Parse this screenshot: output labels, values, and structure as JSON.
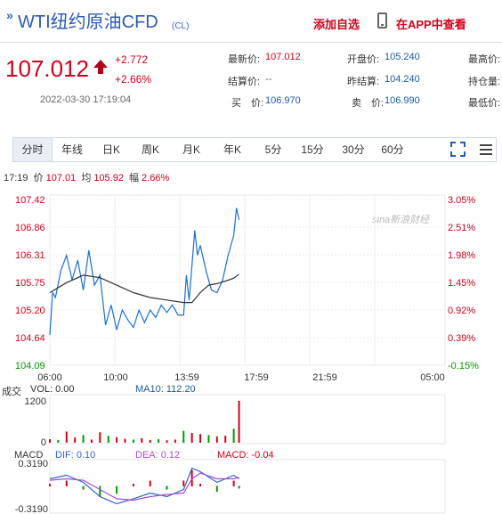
{
  "header": {
    "title": "WTI纽约原油CFD",
    "code": "(CL)",
    "add_fav": "添加自选",
    "app_link": "在APP中查看"
  },
  "price": {
    "last": "107.012",
    "change": "+2.772",
    "change_pct": "+2.66%",
    "timestamp": "2022-03-30 17:19:04"
  },
  "quote": {
    "latest_label": "最新价:",
    "latest": "107.012",
    "open_label": "开盘价:",
    "open": "105.240",
    "high_label": "最高价:",
    "settle_label": "结算价:",
    "settle": "--",
    "prev_settle_label": "昨结算:",
    "prev_settle": "104.240",
    "hold_label": "持仓量:",
    "bid_label": "买　价:",
    "bid": "106.970",
    "ask_label": "卖　价:",
    "ask": "106.990",
    "low_label": "最低价:"
  },
  "tabs": [
    "分时",
    "年线",
    "日K",
    "周K",
    "月K",
    "年K",
    "5分",
    "15分",
    "30分",
    "60分"
  ],
  "info": {
    "time": "17:19",
    "price_label": "价",
    "price": "107.01",
    "avg_label": "均",
    "avg": "105.92",
    "amp_label": "幅",
    "amp": "2.66%"
  },
  "watermark": "sina新浪财经",
  "colors": {
    "up": "#d0021b",
    "down": "#009900",
    "price_line": "#1a6fd6",
    "avg_line": "#333333",
    "dif": "#2f64d6",
    "dea": "#a64dd6"
  },
  "chart_data": [
    {
      "type": "line",
      "y_ticks_left": [
        "107.42",
        "106.86",
        "106.31",
        "105.75",
        "105.20",
        "104.64",
        "104.09"
      ],
      "y_ticks_right": [
        "3.05%",
        "2.51%",
        "1.98%",
        "1.45%",
        "0.92%",
        "0.39%",
        "-0.15%"
      ],
      "x_ticks": [
        "06:00",
        "10:00",
        "13:59",
        "17:59",
        "21:59",
        "05:00"
      ],
      "ylim": [
        104.09,
        107.42
      ],
      "x_range": [
        "06:00",
        "05:00"
      ],
      "series": [
        {
          "x": [
            "06:00",
            "06:10",
            "06:20",
            "06:40",
            "07:00",
            "07:20",
            "07:40",
            "08:00",
            "08:20",
            "08:40",
            "09:00",
            "09:20",
            "09:40",
            "10:00",
            "10:20",
            "10:40",
            "11:00",
            "11:20",
            "11:40",
            "12:00",
            "12:20",
            "12:40",
            "13:00",
            "13:20",
            "13:40",
            "14:00",
            "14:10",
            "14:20",
            "14:30",
            "14:40",
            "14:50",
            "15:00",
            "15:20",
            "15:40",
            "16:00",
            "16:20",
            "16:40",
            "17:00",
            "17:10",
            "17:19"
          ],
          "values": [
            104.7,
            105.55,
            105.45,
            106.0,
            106.3,
            105.8,
            106.2,
            105.6,
            106.4,
            105.7,
            105.9,
            104.9,
            105.3,
            104.8,
            105.2,
            105.0,
            104.85,
            105.2,
            104.95,
            105.2,
            105.05,
            105.3,
            105.15,
            105.3,
            105.1,
            105.1,
            105.9,
            105.4,
            106.1,
            106.8,
            106.3,
            106.5,
            106.0,
            105.6,
            105.55,
            105.8,
            106.3,
            106.7,
            107.25,
            107.01
          ]
        },
        {
          "x": [
            "06:00",
            "07:00",
            "08:00",
            "09:00",
            "10:00",
            "11:00",
            "12:00",
            "13:00",
            "14:00",
            "14:30",
            "15:00",
            "15:30",
            "16:00",
            "16:30",
            "17:00",
            "17:19"
          ],
          "values": [
            105.55,
            105.75,
            105.9,
            105.85,
            105.7,
            105.55,
            105.45,
            105.4,
            105.35,
            105.35,
            105.55,
            105.7,
            105.73,
            105.78,
            105.84,
            105.92
          ]
        }
      ]
    },
    {
      "type": "bar",
      "title": "成交",
      "vol_label": "VOL: 0.00",
      "ma_label": "MA10: 112.20",
      "y_ticks": [
        "1200",
        "0"
      ],
      "ylim": [
        0,
        1200
      ],
      "x": [
        "06:00",
        "06:30",
        "07:00",
        "07:30",
        "08:00",
        "08:30",
        "09:00",
        "09:30",
        "10:00",
        "10:30",
        "11:00",
        "11:30",
        "12:00",
        "12:30",
        "13:00",
        "13:30",
        "14:00",
        "14:30",
        "15:00",
        "15:30",
        "16:00",
        "16:30",
        "17:00",
        "17:19"
      ],
      "values": [
        100,
        80,
        320,
        150,
        220,
        90,
        300,
        200,
        160,
        110,
        90,
        130,
        80,
        100,
        70,
        90,
        340,
        280,
        250,
        220,
        180,
        200,
        400,
        1200
      ]
    },
    {
      "type": "line",
      "title": "MACD",
      "dif_label": "DIF: 0.10",
      "dea_label": "DEA: 0.12",
      "macd_label": "MACD: -0.04",
      "y_ticks": [
        "0.3190",
        "-0.3190"
      ],
      "ylim": [
        -0.319,
        0.319
      ],
      "series": [
        {
          "x": [
            "06:00",
            "07:00",
            "08:00",
            "09:00",
            "10:00",
            "11:00",
            "12:00",
            "13:00",
            "14:00",
            "14:30",
            "15:00",
            "16:00",
            "17:00",
            "17:19"
          ],
          "values": [
            0.1,
            0.15,
            0.05,
            -0.15,
            -0.25,
            -0.18,
            -0.1,
            -0.15,
            -0.05,
            0.25,
            0.2,
            0.05,
            0.15,
            0.1
          ]
        },
        {
          "x": [
            "06:00",
            "07:00",
            "08:00",
            "09:00",
            "10:00",
            "11:00",
            "12:00",
            "13:00",
            "14:00",
            "14:30",
            "15:00",
            "16:00",
            "17:00",
            "17:19"
          ],
          "values": [
            0.08,
            0.1,
            0.08,
            -0.05,
            -0.18,
            -0.2,
            -0.15,
            -0.12,
            -0.1,
            0.1,
            0.18,
            0.1,
            0.1,
            0.12
          ]
        }
      ]
    }
  ]
}
